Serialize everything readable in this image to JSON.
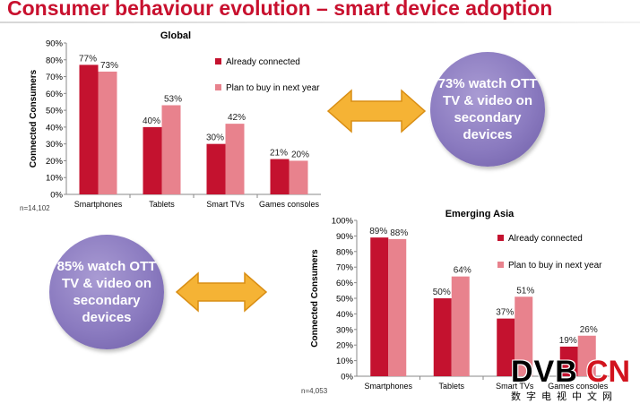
{
  "slide": {
    "title": "Consumer behaviour evolution – smart device adoption"
  },
  "colors": {
    "series_connected": "#c4122f",
    "series_plan": "#e8828d",
    "title": "#c8102e",
    "bubble": "#8b7bc0",
    "arrow": "#f5b335"
  },
  "callouts": {
    "global": "73% watch OTT TV & video on secondary devices",
    "asia": "85% watch OTT TV & video on secondary devices"
  },
  "chart_data": [
    {
      "type": "bar",
      "title": "Global",
      "ylabel": "Connected Consumers",
      "ylim": [
        0,
        90
      ],
      "yticks": [
        "0%",
        "10%",
        "20%",
        "30%",
        "40%",
        "50%",
        "60%",
        "70%",
        "80%",
        "90%"
      ],
      "categories": [
        "Smartphones",
        "Tablets",
        "Smart TVs",
        "Games consoles"
      ],
      "series": [
        {
          "name": "Already connected",
          "values": [
            77,
            40,
            30,
            21
          ],
          "labels": [
            "77%",
            "40%",
            "30%",
            "21%"
          ]
        },
        {
          "name": "Plan to buy in next year",
          "values": [
            73,
            53,
            42,
            20
          ],
          "labels": [
            "73%",
            "53%",
            "42%",
            "20%"
          ]
        }
      ],
      "note": "n=14,102",
      "legend": "right"
    },
    {
      "type": "bar",
      "title": "Emerging Asia",
      "ylabel": "Connected Consumers",
      "ylim": [
        0,
        100
      ],
      "yticks": [
        "0%",
        "10%",
        "20%",
        "30%",
        "40%",
        "50%",
        "60%",
        "70%",
        "80%",
        "90%",
        "100%"
      ],
      "categories": [
        "Smartphones",
        "Tablets",
        "Smart TVs",
        "Games consoles"
      ],
      "series": [
        {
          "name": "Already connected",
          "values": [
            89,
            50,
            37,
            19
          ],
          "labels": [
            "89%",
            "50%",
            "37%",
            "19%"
          ]
        },
        {
          "name": "Plan to buy in  next year",
          "values": [
            88,
            64,
            51,
            26
          ],
          "labels": [
            "88%",
            "64%",
            "51%",
            "26%"
          ]
        }
      ],
      "note": "n=4,053",
      "legend": "right"
    }
  ],
  "watermark": {
    "brand_a": "DVB",
    "brand_b": "CN",
    "subtitle": "数字电视中文网"
  }
}
